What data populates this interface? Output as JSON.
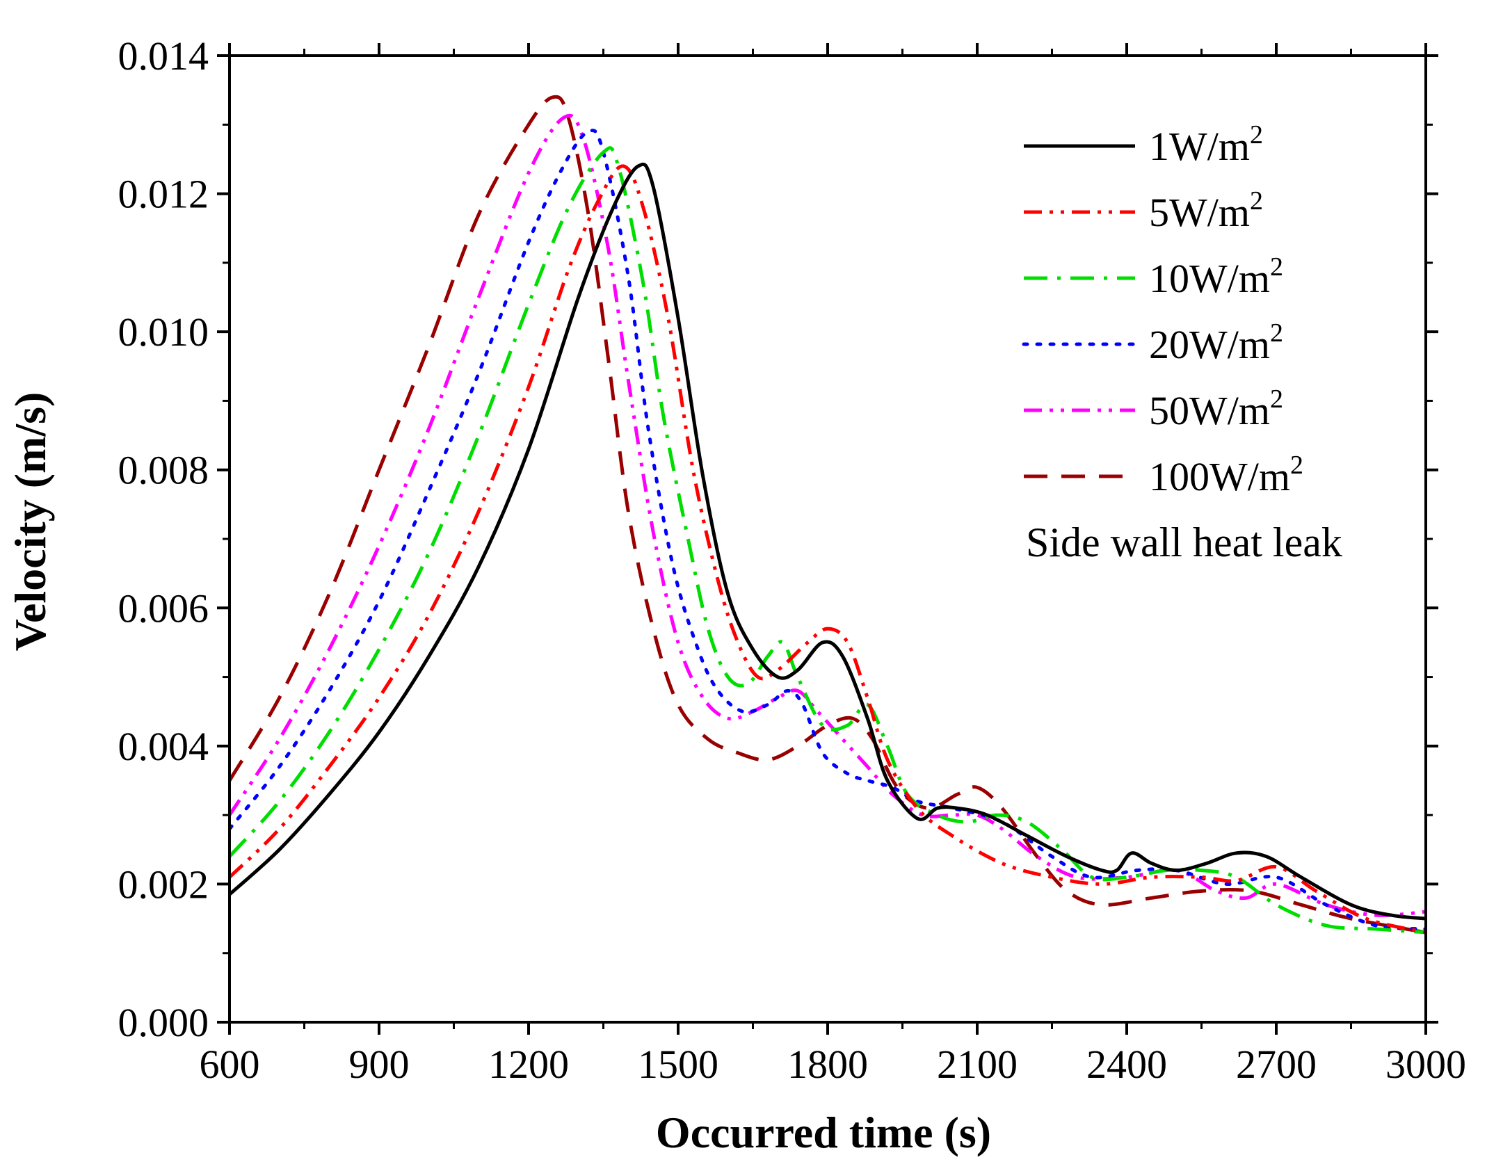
{
  "chart_data": {
    "type": "line",
    "title": "",
    "xlabel": "Occurred time (s)",
    "ylabel": "Velocity (m/s)",
    "xlim": [
      600,
      3000
    ],
    "ylim": [
      0,
      0.014
    ],
    "xticks": [
      "600",
      "900",
      "1200",
      "1500",
      "1800",
      "2100",
      "2400",
      "2700",
      "3000"
    ],
    "yticks": [
      "0.000",
      "0.002",
      "0.004",
      "0.006",
      "0.008",
      "0.010",
      "0.012",
      "0.014"
    ],
    "legend_position": "top-right",
    "annotation": "Side wall heat leak",
    "legend_unit": "W/m",
    "legend_unit_sup": "2",
    "series": [
      {
        "name": "1W/m2",
        "label_value": "1",
        "color": "#000000",
        "style": "solid",
        "points": [
          [
            600,
            0.00185
          ],
          [
            700,
            0.0025
          ],
          [
            800,
            0.0033
          ],
          [
            900,
            0.0042
          ],
          [
            1000,
            0.0053
          ],
          [
            1100,
            0.0066
          ],
          [
            1200,
            0.0083
          ],
          [
            1300,
            0.0105
          ],
          [
            1370,
            0.0118
          ],
          [
            1420,
            0.0124
          ],
          [
            1450,
            0.0121
          ],
          [
            1500,
            0.0102
          ],
          [
            1550,
            0.0079
          ],
          [
            1600,
            0.0062
          ],
          [
            1650,
            0.0054
          ],
          [
            1700,
            0.005
          ],
          [
            1740,
            0.0051
          ],
          [
            1790,
            0.0055
          ],
          [
            1830,
            0.0053
          ],
          [
            1880,
            0.0044
          ],
          [
            1920,
            0.0035
          ],
          [
            1980,
            0.00295
          ],
          [
            2020,
            0.0031
          ],
          [
            2060,
            0.0031
          ],
          [
            2120,
            0.003
          ],
          [
            2200,
            0.0027
          ],
          [
            2280,
            0.0024
          ],
          [
            2350,
            0.0022
          ],
          [
            2380,
            0.0022
          ],
          [
            2410,
            0.00245
          ],
          [
            2450,
            0.0023
          ],
          [
            2500,
            0.0022
          ],
          [
            2560,
            0.0023
          ],
          [
            2620,
            0.00245
          ],
          [
            2680,
            0.0024
          ],
          [
            2750,
            0.0021
          ],
          [
            2850,
            0.0017
          ],
          [
            2930,
            0.00155
          ],
          [
            3000,
            0.0015
          ]
        ]
      },
      {
        "name": "5W/m2",
        "label_value": "5",
        "color": "#ff0000",
        "style": "dashdotdot",
        "points": [
          [
            600,
            0.0021
          ],
          [
            700,
            0.0028
          ],
          [
            800,
            0.0037
          ],
          [
            900,
            0.0047
          ],
          [
            1000,
            0.0059
          ],
          [
            1100,
            0.0074
          ],
          [
            1200,
            0.0092
          ],
          [
            1280,
            0.0109
          ],
          [
            1340,
            0.0119
          ],
          [
            1390,
            0.0124
          ],
          [
            1430,
            0.0118
          ],
          [
            1480,
            0.0102
          ],
          [
            1530,
            0.008
          ],
          [
            1580,
            0.0064
          ],
          [
            1620,
            0.0055
          ],
          [
            1660,
            0.005
          ],
          [
            1700,
            0.0051
          ],
          [
            1760,
            0.0055
          ],
          [
            1800,
            0.0057
          ],
          [
            1840,
            0.0055
          ],
          [
            1880,
            0.0047
          ],
          [
            1920,
            0.0038
          ],
          [
            1980,
            0.0031
          ],
          [
            2050,
            0.0027
          ],
          [
            2150,
            0.0023
          ],
          [
            2250,
            0.0021
          ],
          [
            2350,
            0.002
          ],
          [
            2450,
            0.0021
          ],
          [
            2550,
            0.0021
          ],
          [
            2620,
            0.00205
          ],
          [
            2700,
            0.00225
          ],
          [
            2780,
            0.0019
          ],
          [
            2880,
            0.0015
          ],
          [
            3000,
            0.0013
          ]
        ]
      },
      {
        "name": "10W/m2",
        "label_value": "10",
        "color": "#00dd00",
        "style": "dashdot",
        "points": [
          [
            600,
            0.0024
          ],
          [
            700,
            0.0032
          ],
          [
            800,
            0.0042
          ],
          [
            900,
            0.0054
          ],
          [
            1000,
            0.0068
          ],
          [
            1100,
            0.0085
          ],
          [
            1200,
            0.0104
          ],
          [
            1280,
            0.0118
          ],
          [
            1350,
            0.0126
          ],
          [
            1380,
            0.0124
          ],
          [
            1430,
            0.0107
          ],
          [
            1470,
            0.0088
          ],
          [
            1520,
            0.007
          ],
          [
            1560,
            0.0057
          ],
          [
            1600,
            0.005
          ],
          [
            1640,
            0.0049
          ],
          [
            1680,
            0.0053
          ],
          [
            1710,
            0.0055
          ],
          [
            1740,
            0.005
          ],
          [
            1790,
            0.0043
          ],
          [
            1840,
            0.0043
          ],
          [
            1880,
            0.0046
          ],
          [
            1920,
            0.004
          ],
          [
            1960,
            0.0033
          ],
          [
            2020,
            0.003
          ],
          [
            2080,
            0.0029
          ],
          [
            2140,
            0.003
          ],
          [
            2200,
            0.0029
          ],
          [
            2270,
            0.0025
          ],
          [
            2330,
            0.0021
          ],
          [
            2400,
            0.0021
          ],
          [
            2480,
            0.0022
          ],
          [
            2550,
            0.0022
          ],
          [
            2620,
            0.0021
          ],
          [
            2700,
            0.0017
          ],
          [
            2800,
            0.0014
          ],
          [
            2900,
            0.00135
          ],
          [
            3000,
            0.0013
          ]
        ]
      },
      {
        "name": "20W/m2",
        "label_value": "20",
        "color": "#0000ff",
        "style": "dot",
        "points": [
          [
            600,
            0.0028
          ],
          [
            700,
            0.0037
          ],
          [
            800,
            0.0048
          ],
          [
            900,
            0.0061
          ],
          [
            1000,
            0.0077
          ],
          [
            1100,
            0.0094
          ],
          [
            1200,
            0.0113
          ],
          [
            1270,
            0.0124
          ],
          [
            1320,
            0.0129
          ],
          [
            1350,
            0.0126
          ],
          [
            1400,
            0.0108
          ],
          [
            1440,
            0.0086
          ],
          [
            1490,
            0.0066
          ],
          [
            1540,
            0.0054
          ],
          [
            1580,
            0.0048
          ],
          [
            1630,
            0.0045
          ],
          [
            1680,
            0.0046
          ],
          [
            1720,
            0.0048
          ],
          [
            1750,
            0.0046
          ],
          [
            1790,
            0.0039
          ],
          [
            1840,
            0.0036
          ],
          [
            1880,
            0.0035
          ],
          [
            1930,
            0.0034
          ],
          [
            1980,
            0.0032
          ],
          [
            2050,
            0.0031
          ],
          [
            2150,
            0.0029
          ],
          [
            2250,
            0.0024
          ],
          [
            2330,
            0.0021
          ],
          [
            2420,
            0.0022
          ],
          [
            2500,
            0.0022
          ],
          [
            2600,
            0.002
          ],
          [
            2700,
            0.0021
          ],
          [
            2800,
            0.0017
          ],
          [
            2900,
            0.0014
          ],
          [
            3000,
            0.00135
          ]
        ]
      },
      {
        "name": "50W/m2",
        "label_value": "50",
        "color": "#ff00ff",
        "style": "dashdotdot",
        "points": [
          [
            600,
            0.003
          ],
          [
            700,
            0.0041
          ],
          [
            800,
            0.0054
          ],
          [
            900,
            0.0069
          ],
          [
            1000,
            0.0086
          ],
          [
            1100,
            0.0105
          ],
          [
            1200,
            0.0123
          ],
          [
            1270,
            0.0131
          ],
          [
            1310,
            0.0128
          ],
          [
            1360,
            0.0112
          ],
          [
            1400,
            0.0093
          ],
          [
            1450,
            0.0071
          ],
          [
            1500,
            0.0055
          ],
          [
            1550,
            0.0047
          ],
          [
            1600,
            0.0044
          ],
          [
            1650,
            0.0045
          ],
          [
            1700,
            0.0047
          ],
          [
            1740,
            0.0048
          ],
          [
            1780,
            0.0045
          ],
          [
            1830,
            0.0041
          ],
          [
            1880,
            0.0037
          ],
          [
            1930,
            0.0033
          ],
          [
            1990,
            0.003
          ],
          [
            2050,
            0.003
          ],
          [
            2100,
            0.003
          ],
          [
            2150,
            0.0028
          ],
          [
            2220,
            0.0024
          ],
          [
            2300,
            0.0021
          ],
          [
            2400,
            0.0021
          ],
          [
            2500,
            0.0022
          ],
          [
            2580,
            0.0019
          ],
          [
            2640,
            0.0018
          ],
          [
            2700,
            0.002
          ],
          [
            2800,
            0.0017
          ],
          [
            2900,
            0.00155
          ],
          [
            3000,
            0.0016
          ]
        ]
      },
      {
        "name": "100W/m2",
        "label_value": "100",
        "color": "#990000",
        "style": "dash",
        "points": [
          [
            600,
            0.0035
          ],
          [
            700,
            0.0047
          ],
          [
            800,
            0.0062
          ],
          [
            900,
            0.008
          ],
          [
            1000,
            0.0098
          ],
          [
            1100,
            0.0117
          ],
          [
            1200,
            0.013
          ],
          [
            1250,
            0.0134
          ],
          [
            1280,
            0.0131
          ],
          [
            1320,
            0.0117
          ],
          [
            1360,
            0.0096
          ],
          [
            1400,
            0.0074
          ],
          [
            1450,
            0.0057
          ],
          [
            1500,
            0.0046
          ],
          [
            1560,
            0.0041
          ],
          [
            1620,
            0.0039
          ],
          [
            1680,
            0.0038
          ],
          [
            1740,
            0.004
          ],
          [
            1800,
            0.0043
          ],
          [
            1850,
            0.0044
          ],
          [
            1890,
            0.0041
          ],
          [
            1940,
            0.0034
          ],
          [
            2000,
            0.0031
          ],
          [
            2060,
            0.0033
          ],
          [
            2100,
            0.0034
          ],
          [
            2150,
            0.0031
          ],
          [
            2220,
            0.0024
          ],
          [
            2280,
            0.0019
          ],
          [
            2350,
            0.0017
          ],
          [
            2450,
            0.0018
          ],
          [
            2550,
            0.0019
          ],
          [
            2650,
            0.0019
          ],
          [
            2750,
            0.0017
          ],
          [
            2850,
            0.0015
          ],
          [
            3000,
            0.0013
          ]
        ]
      }
    ]
  }
}
